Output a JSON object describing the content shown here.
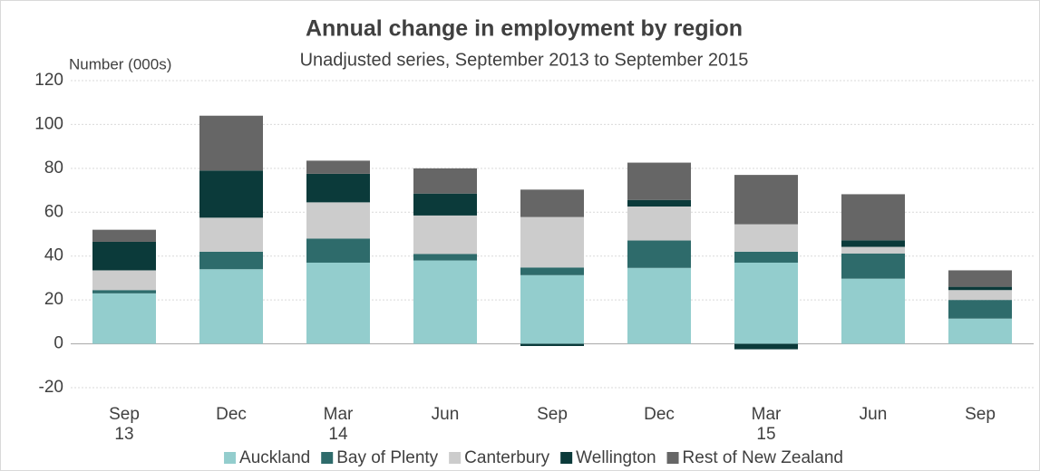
{
  "chart_data": {
    "type": "stacked-bar",
    "title": "Annual change in employment by region",
    "subtitle": "Unadjusted series, September 2013 to September 2015",
    "y_label": "Number (000s)",
    "categories": [
      "Sep 13",
      "Dec",
      "Mar 14",
      "Jun",
      "Sep",
      "Dec",
      "Mar 15",
      "Jun",
      "Sep"
    ],
    "series": [
      {
        "name": "Auckland",
        "color": "#93cdcd",
        "values": [
          23,
          34,
          37,
          38,
          31.3,
          34.6,
          37,
          29.7,
          11.5
        ]
      },
      {
        "name": "Bay of Plenty",
        "color": "#2e6b6b",
        "values": [
          1.5,
          8,
          11,
          3,
          3.5,
          12.5,
          5,
          11.5,
          8.5
        ]
      },
      {
        "name": "Canterbury",
        "color": "#cccccc",
        "values": [
          9,
          15.5,
          16.5,
          17.5,
          23,
          15.5,
          12.5,
          3,
          4.5
        ]
      },
      {
        "name": "Wellington",
        "color": "#0b3a3a",
        "values": [
          13,
          21.5,
          13,
          10,
          -1,
          3,
          -2.5,
          3,
          1.5
        ]
      },
      {
        "name": "Rest of New Zealand",
        "color": "#666666",
        "values": [
          5.5,
          25,
          6,
          11.5,
          12.5,
          17,
          22.5,
          21,
          7.5
        ]
      }
    ],
    "ylim": [
      -20,
      120
    ],
    "yticks": [
      -20,
      0,
      20,
      40,
      60,
      80,
      100,
      120
    ],
    "grid": true
  }
}
